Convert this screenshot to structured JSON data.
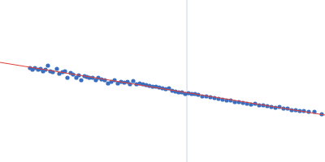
{
  "chart_data": {
    "type": "scatter",
    "xlim": [
      0,
      400
    ],
    "ylim": [
      0,
      200
    ],
    "tick_labels": false,
    "grid": false,
    "reference_x": 230,
    "series": [
      {
        "type": "scatter",
        "color": "#3a6fbf",
        "marker": "circle",
        "x": [
          37,
          40,
          43,
          47,
          50,
          53,
          56,
          59,
          62,
          65,
          70,
          73,
          77,
          80,
          83,
          87,
          90,
          94,
          97,
          100,
          104,
          107,
          110,
          114,
          118,
          121,
          125,
          129,
          133,
          137,
          141,
          145,
          149,
          153,
          157,
          160,
          164,
          168,
          172,
          176,
          180,
          184,
          188,
          192,
          196,
          200,
          204,
          208,
          212,
          216,
          220,
          224,
          228,
          232,
          236,
          240,
          244,
          249,
          254,
          259,
          264,
          269,
          274,
          279,
          284,
          289,
          294,
          299,
          304,
          309,
          314,
          319,
          324,
          329,
          334,
          339,
          344,
          349,
          354,
          359,
          364,
          369,
          374,
          380,
          387,
          396
        ],
        "values": [
          116,
          114,
          116,
          114,
          115,
          112,
          114,
          119,
          112,
          111,
          115,
          109,
          111,
          112,
          104,
          110,
          108,
          104,
          107,
          101,
          106,
          105,
          104,
          104,
          101,
          104,
          102,
          101,
          97,
          99,
          101,
          97,
          99,
          98,
          99,
          96,
          100,
          96,
          97,
          96,
          95,
          94,
          93,
          93,
          92,
          91,
          90,
          91,
          88,
          87,
          86,
          86,
          84,
          85,
          84,
          84,
          83,
          81,
          81,
          80,
          79,
          78,
          77,
          76,
          76,
          74,
          74,
          73,
          72,
          71,
          72,
          70,
          70,
          69,
          68,
          67,
          68,
          66,
          66,
          64,
          64,
          63,
          63,
          62,
          62,
          59
        ]
      },
      {
        "type": "line",
        "color": "#e0403a",
        "line_style": "solid",
        "x": [
          0,
          400
        ],
        "values": [
          123,
          58
        ]
      }
    ]
  }
}
